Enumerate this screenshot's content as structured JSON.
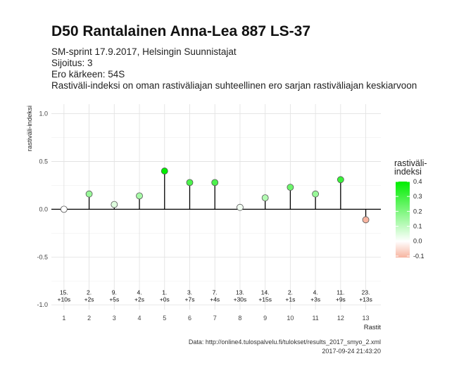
{
  "title": "D50 Rantalainen Anna-Lea 887 LS-37",
  "subtitle_lines": [
    "SM-sprint 17.9.2017, Helsingin Suunnistajat",
    "Sijoitus: 3",
    "Ero kärkeen: 54S",
    "Rastiväli-indeksi on oman rastiväliajan suhteellinen ero sarjan rastiväliajan keskiarvoon"
  ],
  "caption_lines": [
    "Data: http://online4.tulospalvelu.fi/tulokset/results_2017_smyo_2.xml",
    "2017-09-24 21:43:20"
  ],
  "chart_data": {
    "type": "scatter",
    "style": "lollipop",
    "xlabel": "Rastit",
    "ylabel": "rastiväli-indeksi",
    "x": [
      1,
      2,
      3,
      4,
      5,
      6,
      7,
      8,
      9,
      10,
      11,
      12,
      13
    ],
    "values": [
      0.0,
      0.16,
      0.05,
      0.14,
      0.4,
      0.28,
      0.28,
      0.02,
      0.12,
      0.23,
      0.16,
      0.31,
      -0.11
    ],
    "point_labels": [
      [
        "15.",
        "+10s"
      ],
      [
        "2.",
        "+2s"
      ],
      [
        "9.",
        "+5s"
      ],
      [
        "4.",
        "+2s"
      ],
      [
        "1.",
        "+0s"
      ],
      [
        "3.",
        "+7s"
      ],
      [
        "7.",
        "+4s"
      ],
      [
        "13.",
        "+30s"
      ],
      [
        "14.",
        "+15s"
      ],
      [
        "2.",
        "+1s"
      ],
      [
        "4.",
        "+3s"
      ],
      [
        "11.",
        "+9s"
      ],
      [
        "23.",
        "+13s"
      ]
    ],
    "label_y": -0.92,
    "xlim": [
      0.5,
      13.6
    ],
    "ylim": [
      -1.05,
      1.1
    ],
    "yticks": [
      -1.0,
      -0.5,
      0.0,
      0.5,
      1.0
    ],
    "ytick_labels": [
      "-1.0",
      "-0.5",
      "0.0",
      "0.5",
      "1.0"
    ],
    "xtick_labels": [
      "1",
      "2",
      "3",
      "4",
      "5",
      "6",
      "7",
      "8",
      "9",
      "10",
      "11",
      "12",
      "13"
    ],
    "grid": true,
    "legend": {
      "title": "rastiväli-\nindeksi",
      "position": "right",
      "breaks": [
        "0.4",
        "0.3",
        "0.2",
        "0.1",
        "0.0",
        "-0.1"
      ],
      "limits": [
        -0.11,
        0.4
      ]
    },
    "colors": {
      "low": "#f7b4a0",
      "mid": "#ffffff",
      "high": "#00ee00",
      "grid": "#e3e3e3",
      "axis": "#000000"
    }
  }
}
